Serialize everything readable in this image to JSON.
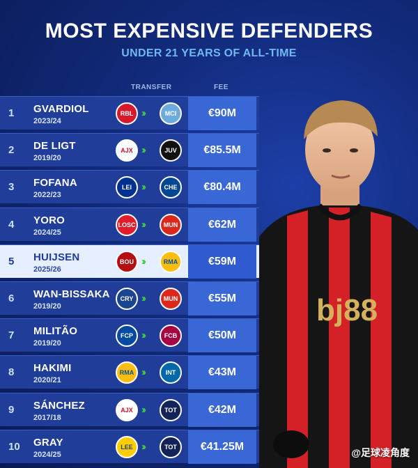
{
  "header": {
    "title": "MOST EXPENSIVE DEFENDERS",
    "subtitle": "UNDER 21 YEARS OF ALL-TIME",
    "col_transfer": "TRANSFER",
    "col_fee": "FEE"
  },
  "rows": [
    {
      "rank": "1",
      "name": "GVARDIOL",
      "season": "2023/24",
      "from": "RBL",
      "to": "MCI",
      "fee": "€90M"
    },
    {
      "rank": "2",
      "name": "DE LIGT",
      "season": "2019/20",
      "from": "AJX",
      "to": "JUV",
      "fee": "€85.5M"
    },
    {
      "rank": "3",
      "name": "FOFANA",
      "season": "2022/23",
      "from": "LEI",
      "to": "CHE",
      "fee": "€80.4M"
    },
    {
      "rank": "4",
      "name": "YORO",
      "season": "2024/25",
      "from": "LOSC",
      "to": "MUN",
      "fee": "€62M"
    },
    {
      "rank": "5",
      "name": "HUIJSEN",
      "season": "2025/26",
      "from": "BOU",
      "to": "RMA",
      "fee": "€59M"
    },
    {
      "rank": "6",
      "name": "WAN-BISSAKA",
      "season": "2019/20",
      "from": "CRY",
      "to": "MUN",
      "fee": "€55M"
    },
    {
      "rank": "7",
      "name": "MILITÃO",
      "season": "2019/20",
      "from": "FCP",
      "to": "FCB",
      "fee": "€50M"
    },
    {
      "rank": "8",
      "name": "HAKIMI",
      "season": "2020/21",
      "from": "RMA",
      "to": "INT",
      "fee": "€43M"
    },
    {
      "rank": "9",
      "name": "SÁNCHEZ",
      "season": "2017/18",
      "from": "AJX",
      "to": "TOT",
      "fee": "€42M"
    },
    {
      "rank": "10",
      "name": "GRAY",
      "season": "2024/25",
      "from": "LEE",
      "to": "TOT",
      "fee": "€41.25M"
    }
  ],
  "highlight_rank": "5",
  "player": {
    "shirt_text": "bj88"
  },
  "watermark": "@足球凌角度",
  "colors": {
    "bg": "#112a7a",
    "row": "#1f3d99",
    "row_highlight": "#e6efff",
    "fee_box": "#3a67d6",
    "arrow": "#3ecf3e",
    "subtitle": "#6fb8f0"
  }
}
